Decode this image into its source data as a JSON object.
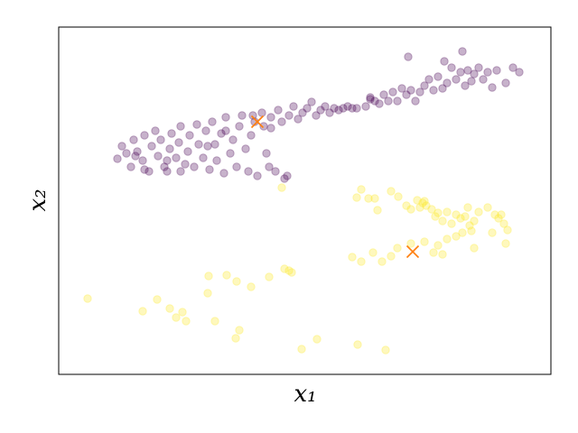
{
  "chart_data": {
    "type": "scatter",
    "xlabel": "x₁",
    "ylabel": "x₂",
    "xlim": [
      0,
      545
    ],
    "ylim": [
      0,
      385
    ],
    "series": [
      {
        "color": "#440154",
        "alpha": 0.3,
        "marker": "o",
        "x": [
          65,
          70,
          75,
          80,
          83,
          87,
          93,
          95,
          100,
          103,
          107,
          110,
          113,
          117,
          120,
          123,
          125,
          130,
          133,
          135,
          140,
          143,
          145,
          150,
          153,
          155,
          160,
          163,
          167,
          170,
          173,
          175,
          180,
          183,
          185,
          190,
          193,
          197,
          200,
          203,
          207,
          210,
          213,
          217,
          220,
          225,
          227,
          230,
          233,
          235,
          240,
          243,
          247,
          250,
          253,
          255,
          260,
          265,
          270,
          275,
          280,
          285,
          290,
          295,
          300,
          305,
          310,
          315,
          320,
          325,
          330,
          340,
          345,
          350,
          355,
          360,
          365,
          370,
          375,
          380,
          385,
          390,
          395,
          400,
          405,
          410,
          415,
          420,
          425,
          427,
          430,
          435,
          440,
          445,
          447,
          450,
          453,
          457,
          460,
          465,
          470,
          475,
          480,
          485,
          495,
          503,
          510,
          387,
          345,
          235,
          215,
          185,
          165,
          135,
          120,
          95,
          85
        ],
        "y": [
          239,
          253,
          245,
          230,
          260,
          247,
          237,
          265,
          225,
          253,
          270,
          242,
          260,
          230,
          225,
          250,
          267,
          240,
          257,
          275,
          233,
          247,
          265,
          230,
          277,
          255,
          240,
          270,
          227,
          280,
          255,
          237,
          267,
          223,
          285,
          245,
          260,
          230,
          275,
          287,
          250,
          225,
          265,
          280,
          220,
          290,
          275,
          245,
          230,
          285,
          225,
          293,
          280,
          217,
          220,
          287,
          297,
          283,
          290,
          295,
          302,
          287,
          293,
          297,
          290,
          295,
          293,
          295,
          297,
          295,
          295,
          297,
          307,
          303,
          300,
          310,
          303,
          313,
          303,
          317,
          310,
          315,
          303,
          313,
          320,
          327,
          315,
          330,
          317,
          347,
          323,
          340,
          327,
          335,
          358,
          320,
          337,
          325,
          333,
          340,
          327,
          335,
          318,
          337,
          323,
          340,
          335,
          352,
          305,
          273,
          287,
          270,
          253,
          225,
          237,
          227,
          242
        ]
      },
      {
        "color": "#fde725",
        "alpha": 0.3,
        "marker": "o",
        "x": [
          32,
          93,
          109,
          123,
          130,
          137,
          141,
          165,
          166,
          173,
          186,
          197,
          196,
          200,
          213,
          233,
          250,
          255,
          258,
          269,
          286,
          331,
          362,
          247,
          330,
          335,
          343,
          350,
          353,
          368,
          376,
          385,
          390,
          397,
          400,
          403,
          405,
          407,
          413,
          417,
          420,
          425,
          430,
          435,
          440,
          445,
          450,
          453,
          457,
          460,
          465,
          475,
          480,
          483,
          487,
          493,
          495,
          497,
          490,
          325,
          335,
          348,
          358,
          368,
          375,
          390,
          405,
          415,
          420,
          430,
          440,
          447,
          455,
          460,
          425
        ],
        "y": [
          84,
          70,
          83,
          73,
          63,
          69,
          59,
          90,
          109,
          59,
          110,
          103,
          40,
          49,
          97,
          108,
          117,
          115,
          113,
          28,
          39,
          33,
          27,
          207,
          196,
          205,
          195,
          195,
          182,
          203,
          197,
          187,
          183,
          193,
          185,
          190,
          192,
          187,
          183,
          175,
          179,
          170,
          180,
          167,
          177,
          173,
          175,
          185,
          159,
          170,
          180,
          185,
          157,
          177,
          173,
          167,
          145,
          160,
          177,
          130,
          125,
          135,
          125,
          131,
          140,
          145,
          147,
          135,
          143,
          150,
          153,
          157,
          165,
          140,
          133
        ]
      },
      {
        "color": "#ff7f0e",
        "alpha": 1,
        "marker": "x",
        "x": [
          220,
          392
        ],
        "y": [
          280,
          136
        ]
      }
    ]
  }
}
